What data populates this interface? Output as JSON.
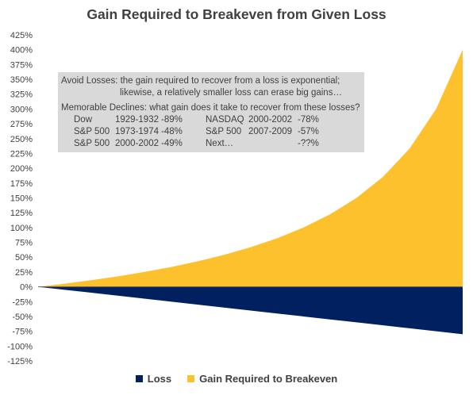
{
  "chart_data": {
    "type": "area",
    "title": "Gain Required to Breakeven from Given Loss",
    "xlabel": "",
    "ylabel": "",
    "ylim": [
      -125,
      425
    ],
    "y_ticks": [
      "425%",
      "400%",
      "375%",
      "350%",
      "325%",
      "300%",
      "275%",
      "250%",
      "225%",
      "200%",
      "175%",
      "150%",
      "125%",
      "100%",
      "75%",
      "50%",
      "25%",
      "0%",
      "-25%",
      "-50%",
      "-75%",
      "-100%",
      "-125%"
    ],
    "y_tick_values": [
      425,
      400,
      375,
      350,
      325,
      300,
      275,
      250,
      225,
      200,
      175,
      150,
      125,
      100,
      75,
      50,
      25,
      0,
      -25,
      -50,
      -75,
      -100,
      -125
    ],
    "x": [
      0,
      5,
      10,
      15,
      20,
      25,
      30,
      35,
      40,
      45,
      50,
      55,
      60,
      65,
      70,
      75,
      80
    ],
    "series": [
      {
        "name": "Loss",
        "color": "#002060",
        "values": [
          0,
          -5,
          -10,
          -15,
          -20,
          -25,
          -30,
          -35,
          -40,
          -45,
          -50,
          -55,
          -60,
          -65,
          -70,
          -75,
          -80
        ]
      },
      {
        "name": "Gain Required to Breakeven",
        "color": "#fcc12d",
        "values": [
          0,
          5.3,
          11.1,
          17.6,
          25,
          33.3,
          42.9,
          53.8,
          66.7,
          81.8,
          100,
          122.2,
          150,
          185.7,
          233.3,
          300,
          400
        ]
      }
    ],
    "grid": false,
    "legend_position": "bottom",
    "annotation": {
      "line1": "Avoid Losses:  the gain required to recover from a loss is exponential;",
      "line2": "likewise, a relatively smaller loss can erase big gains…",
      "subtitle": "Memorable Declines:  what gain does it take to recover from these losses?",
      "rows": [
        [
          "Dow",
          "1929-1932",
          "-89%",
          "NASDAQ",
          "2000-2002",
          "-78%"
        ],
        [
          "S&P 500",
          "1973-1974",
          "-48%",
          "S&P 500",
          "2007-2009",
          "-57%"
        ],
        [
          "S&P 500",
          "2000-2002",
          "-49%",
          "Next…",
          "",
          "-??%"
        ]
      ]
    }
  }
}
